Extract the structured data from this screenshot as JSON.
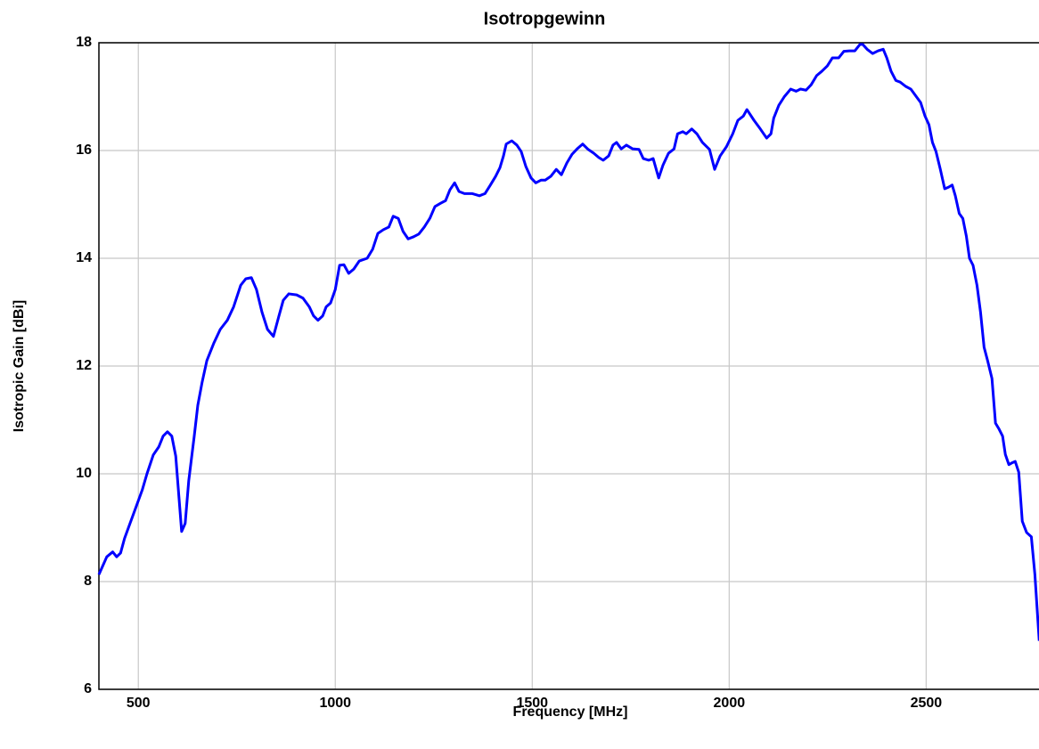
{
  "chart_data": {
    "type": "line",
    "title": "Isotropgewinn",
    "xlabel": "Frequency [MHz]",
    "ylabel": "Isotropic Gain [dBi]",
    "xlim": [
      400,
      2800
    ],
    "ylim": [
      6,
      18
    ],
    "xticks": [
      500,
      1000,
      1500,
      2000,
      2500
    ],
    "yticks": [
      6,
      8,
      10,
      12,
      14,
      16,
      18
    ],
    "grid": true,
    "x": [
      400,
      420,
      435,
      445,
      455,
      465,
      475,
      490,
      510,
      522,
      538,
      552,
      563,
      574,
      585,
      595,
      610,
      619,
      628,
      642,
      651,
      662,
      674,
      692,
      708,
      726,
      742,
      760,
      773,
      787,
      800,
      814,
      828,
      843,
      857,
      868,
      882,
      902,
      918,
      934,
      945,
      956,
      968,
      977,
      988,
      1000,
      1011,
      1022,
      1034,
      1047,
      1061,
      1081,
      1095,
      1108,
      1122,
      1136,
      1147,
      1160,
      1172,
      1185,
      1199,
      1212,
      1226,
      1240,
      1253,
      1267,
      1280,
      1291,
      1303,
      1314,
      1328,
      1348,
      1366,
      1380,
      1393,
      1407,
      1418,
      1427,
      1434,
      1448,
      1461,
      1472,
      1484,
      1497,
      1509,
      1522,
      1533,
      1547,
      1561,
      1574,
      1588,
      1601,
      1614,
      1628,
      1642,
      1656,
      1669,
      1680,
      1694,
      1705,
      1714,
      1726,
      1739,
      1755,
      1771,
      1782,
      1796,
      1807,
      1821,
      1832,
      1846,
      1860,
      1869,
      1882,
      1891,
      1905,
      1918,
      1932,
      1950,
      1963,
      1977,
      1993,
      2009,
      2022,
      2036,
      2045,
      2063,
      2079,
      2095,
      2106,
      2113,
      2126,
      2140,
      2156,
      2170,
      2181,
      2195,
      2208,
      2222,
      2235,
      2249,
      2262,
      2278,
      2291,
      2305,
      2319,
      2332,
      2339,
      2350,
      2364,
      2378,
      2391,
      2400,
      2411,
      2423,
      2434,
      2448,
      2461,
      2475,
      2486,
      2497,
      2507,
      2516,
      2525,
      2536,
      2547,
      2557,
      2566,
      2574,
      2584,
      2593,
      2602,
      2610,
      2619,
      2629,
      2638,
      2647,
      2656,
      2667,
      2676,
      2685,
      2694,
      2701,
      2710,
      2717,
      2726,
      2735,
      2744,
      2755,
      2767,
      2776,
      2787
    ],
    "series": [
      {
        "name": "Isotropic Gain",
        "color": "#0000ff",
        "values": [
          8.13,
          8.46,
          8.55,
          8.46,
          8.53,
          8.8,
          9.0,
          9.3,
          9.7,
          10.0,
          10.35,
          10.5,
          10.7,
          10.78,
          10.7,
          10.33,
          8.93,
          9.08,
          9.87,
          10.7,
          11.27,
          11.7,
          12.1,
          12.43,
          12.68,
          12.85,
          13.1,
          13.5,
          13.62,
          13.64,
          13.42,
          13.0,
          12.68,
          12.55,
          12.93,
          13.22,
          13.34,
          13.32,
          13.26,
          13.1,
          12.93,
          12.85,
          12.93,
          13.1,
          13.17,
          13.42,
          13.87,
          13.88,
          13.72,
          13.8,
          13.95,
          14.0,
          14.17,
          14.46,
          14.53,
          14.58,
          14.78,
          14.74,
          14.5,
          14.36,
          14.4,
          14.45,
          14.58,
          14.74,
          14.96,
          15.02,
          15.07,
          15.27,
          15.4,
          15.24,
          15.2,
          15.2,
          15.16,
          15.2,
          15.35,
          15.52,
          15.68,
          15.9,
          16.12,
          16.18,
          16.1,
          15.98,
          15.7,
          15.49,
          15.4,
          15.45,
          15.45,
          15.52,
          15.65,
          15.55,
          15.77,
          15.93,
          16.03,
          16.12,
          16.02,
          15.95,
          15.87,
          15.82,
          15.9,
          16.1,
          16.15,
          16.03,
          16.1,
          16.03,
          16.02,
          15.85,
          15.82,
          15.85,
          15.49,
          15.73,
          15.95,
          16.03,
          16.31,
          16.35,
          16.31,
          16.4,
          16.31,
          16.15,
          16.02,
          15.65,
          15.9,
          16.07,
          16.31,
          16.56,
          16.64,
          16.76,
          16.56,
          16.4,
          16.23,
          16.31,
          16.6,
          16.84,
          17.0,
          17.14,
          17.1,
          17.14,
          17.12,
          17.22,
          17.39,
          17.47,
          17.57,
          17.72,
          17.72,
          17.84,
          17.85,
          17.85,
          17.97,
          17.97,
          17.88,
          17.8,
          17.85,
          17.88,
          17.72,
          17.47,
          17.3,
          17.27,
          17.19,
          17.14,
          17.0,
          16.89,
          16.64,
          16.48,
          16.15,
          15.98,
          15.65,
          15.29,
          15.32,
          15.36,
          15.16,
          14.83,
          14.74,
          14.41,
          14.0,
          13.87,
          13.5,
          13.0,
          12.35,
          12.1,
          11.77,
          10.94,
          10.83,
          10.7,
          10.36,
          10.17,
          10.2,
          10.23,
          10.03,
          9.12,
          8.91,
          8.83,
          8.13,
          6.9
        ]
      }
    ]
  }
}
